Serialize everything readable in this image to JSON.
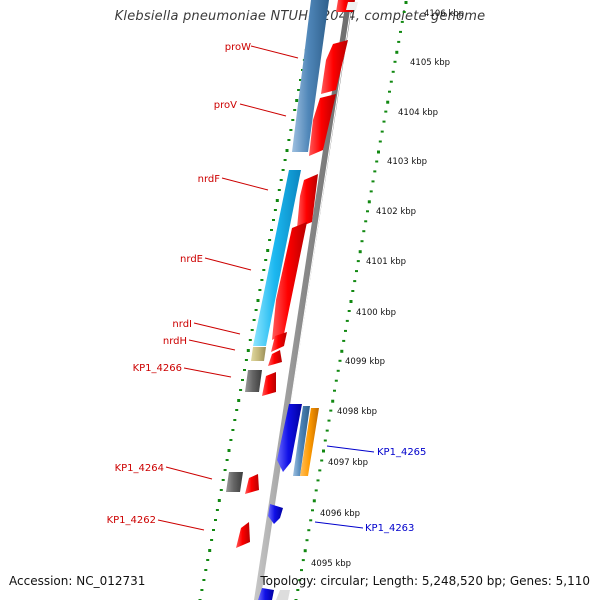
{
  "title": "Klebsiella pneumoniae NTUH-K2044, complete genome",
  "footer": {
    "accession": "Accession: NC_012731",
    "info": "Topology: circular; Length: 5,248,520 bp; Genes: 5,110"
  },
  "colors": {
    "reverse_label": "#cc0000",
    "forward_label": "#0000cc",
    "cds": "#ff0000",
    "tick_dots": "#118811",
    "backbone": "#888888"
  },
  "scale_ticks": [
    "4106 kbp",
    "4105 kbp",
    "4104 kbp",
    "4103 kbp",
    "4102 kbp",
    "4101 kbp",
    "4100 kbp",
    "4099 kbp",
    "4098 kbp",
    "4097 kbp",
    "4096 kbp",
    "4095 kbp"
  ],
  "gene_labels": {
    "left": [
      "proW",
      "proV",
      "nrdF",
      "nrdE",
      "nrdI",
      "nrdH",
      "KP1_4266",
      "KP1_4264",
      "KP1_4262"
    ],
    "right": [
      "KP1_4265",
      "KP1_4263"
    ]
  }
}
